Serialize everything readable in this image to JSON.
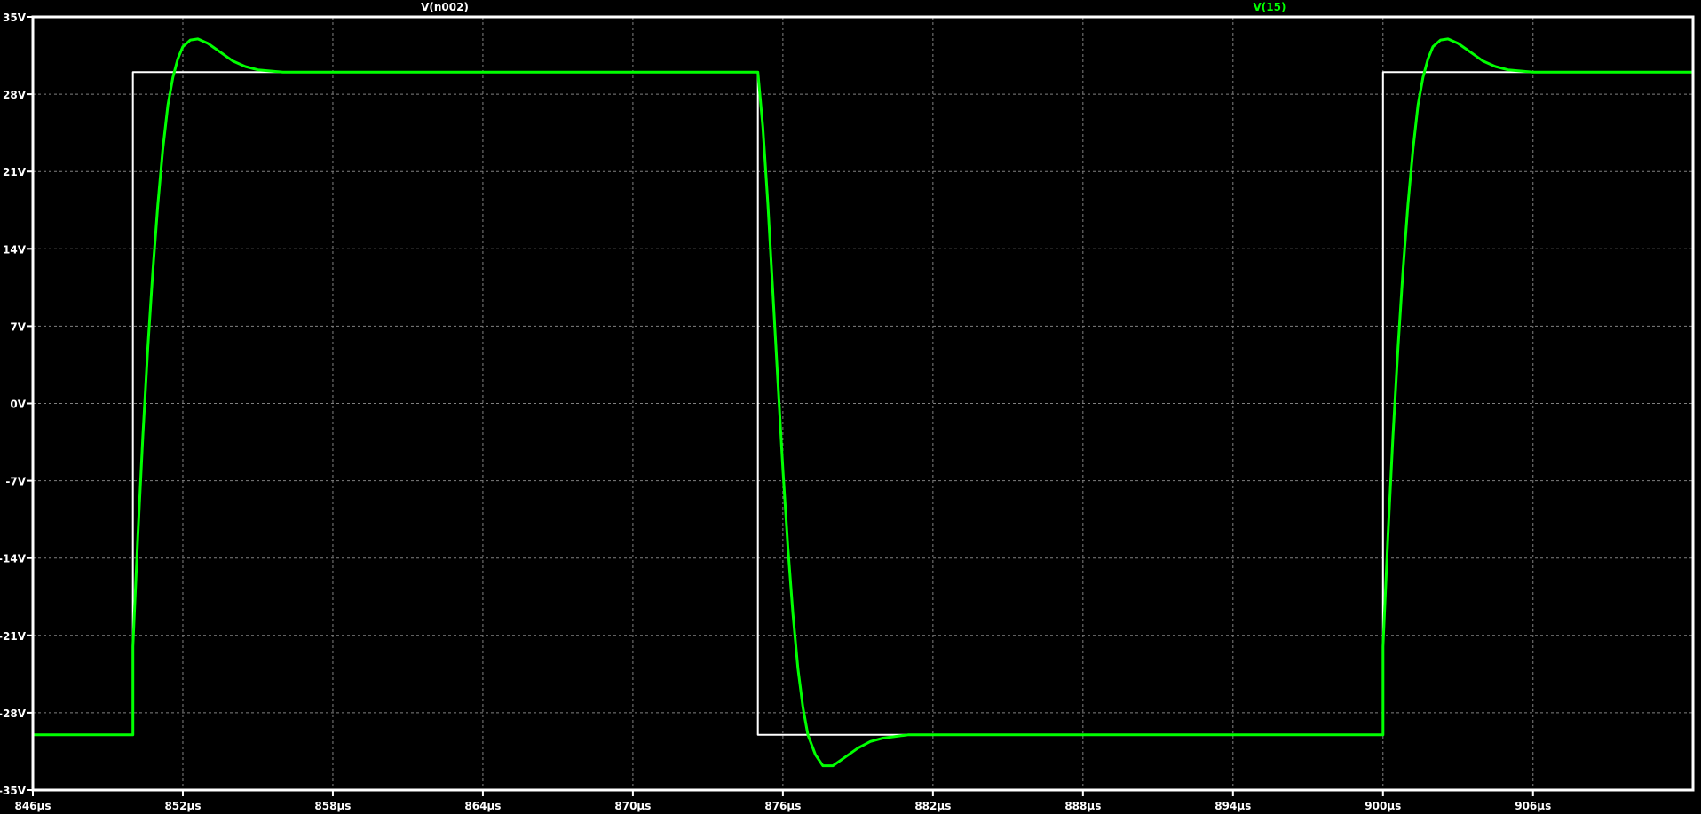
{
  "chart_data": {
    "type": "line",
    "title": "",
    "xlabel": "",
    "ylabel": "",
    "xlim": [
      846,
      912.4
    ],
    "ylim": [
      -35,
      35
    ],
    "grid": true,
    "background": "#000000",
    "x_ticks": [
      846,
      852,
      858,
      864,
      870,
      876,
      882,
      888,
      894,
      900,
      906
    ],
    "x_tick_labels": [
      "846µs",
      "852µs",
      "858µs",
      "864µs",
      "870µs",
      "876µs",
      "882µs",
      "888µs",
      "894µs",
      "900µs",
      "906µs"
    ],
    "y_ticks": [
      35,
      28,
      21,
      14,
      7,
      0,
      -7,
      -14,
      -21,
      -28,
      -35
    ],
    "y_tick_labels": [
      "35V",
      "28V",
      "21V",
      "14V",
      "7V",
      "0V",
      "-7V",
      "-14V",
      "-21V",
      "-28V",
      "-35V"
    ],
    "series": [
      {
        "name": "V(n002)",
        "color": "#ffffff",
        "points": [
          [
            846,
            -30
          ],
          [
            850,
            -30
          ],
          [
            850,
            30
          ],
          [
            875,
            30
          ],
          [
            875,
            -30
          ],
          [
            900,
            -30
          ],
          [
            900,
            30
          ],
          [
            912.4,
            30
          ]
        ]
      },
      {
        "name": "V(15)",
        "color": "#00ff00",
        "points": [
          [
            846,
            -30
          ],
          [
            850,
            -30
          ],
          [
            850,
            -22
          ],
          [
            850.2,
            -12
          ],
          [
            850.4,
            -3
          ],
          [
            850.6,
            5
          ],
          [
            850.8,
            12
          ],
          [
            851,
            18
          ],
          [
            851.2,
            23
          ],
          [
            851.4,
            27
          ],
          [
            851.6,
            29.5
          ],
          [
            851.8,
            31.2
          ],
          [
            852,
            32.3
          ],
          [
            852.3,
            32.9
          ],
          [
            852.6,
            33
          ],
          [
            853,
            32.6
          ],
          [
            853.5,
            31.8
          ],
          [
            854,
            31
          ],
          [
            854.5,
            30.5
          ],
          [
            855,
            30.2
          ],
          [
            856,
            30
          ],
          [
            875,
            30
          ],
          [
            875.2,
            25
          ],
          [
            875.4,
            18
          ],
          [
            875.6,
            10
          ],
          [
            875.8,
            2
          ],
          [
            876,
            -6
          ],
          [
            876.2,
            -13
          ],
          [
            876.4,
            -19
          ],
          [
            876.6,
            -24
          ],
          [
            876.8,
            -27.5
          ],
          [
            877,
            -30
          ],
          [
            877.3,
            -31.8
          ],
          [
            877.6,
            -32.8
          ],
          [
            878,
            -32.8
          ],
          [
            878.5,
            -32
          ],
          [
            879,
            -31.2
          ],
          [
            879.5,
            -30.6
          ],
          [
            880,
            -30.3
          ],
          [
            881,
            -30
          ],
          [
            900,
            -30
          ],
          [
            900,
            -22
          ],
          [
            900.2,
            -12
          ],
          [
            900.4,
            -3
          ],
          [
            900.6,
            5
          ],
          [
            900.8,
            12
          ],
          [
            901,
            18
          ],
          [
            901.2,
            23
          ],
          [
            901.4,
            27
          ],
          [
            901.6,
            29.5
          ],
          [
            901.8,
            31.2
          ],
          [
            902,
            32.3
          ],
          [
            902.3,
            32.9
          ],
          [
            902.6,
            33
          ],
          [
            903,
            32.6
          ],
          [
            903.5,
            31.8
          ],
          [
            904,
            31
          ],
          [
            904.5,
            30.5
          ],
          [
            905,
            30.2
          ],
          [
            906,
            30
          ],
          [
            912.4,
            30
          ]
        ]
      }
    ]
  }
}
